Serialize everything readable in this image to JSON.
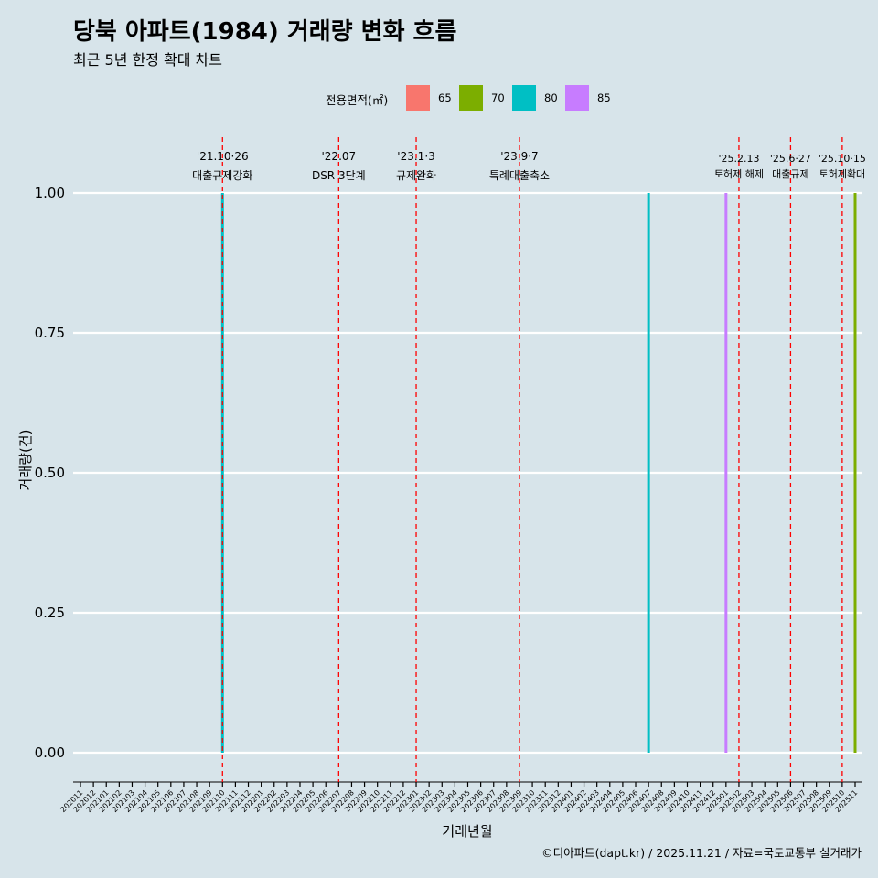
{
  "title": "당북 아파트(1984) 거래량 변화 흐름",
  "subtitle": "최근 5년 한정 확대 차트",
  "caption": "©디아파트(dapt.kr) / 2025.11.21 / 자료=국토교통부 실거래가",
  "legend": {
    "title": "전용면적(㎡)",
    "items": [
      {
        "label": "65",
        "color": "#f8766d"
      },
      {
        "label": "70",
        "color": "#7cae00"
      },
      {
        "label": "80",
        "color": "#00bfc4"
      },
      {
        "label": "85",
        "color": "#c77cff"
      }
    ]
  },
  "chart_data": {
    "type": "bar",
    "title": "당북 아파트(1984) 거래량 변화 흐름",
    "xlabel": "거래년월",
    "ylabel": "거래량(건)",
    "ylim": [
      0,
      1
    ],
    "yticks": [
      "0.00",
      "0.25",
      "0.50",
      "0.75",
      "1.00"
    ],
    "categories": [
      "202011",
      "202012",
      "202101",
      "202102",
      "202103",
      "202104",
      "202105",
      "202106",
      "202107",
      "202108",
      "202109",
      "202110",
      "202111",
      "202112",
      "202201",
      "202202",
      "202203",
      "202204",
      "202205",
      "202206",
      "202207",
      "202208",
      "202209",
      "202210",
      "202211",
      "202212",
      "202301",
      "202302",
      "202303",
      "202304",
      "202305",
      "202306",
      "202307",
      "202308",
      "202309",
      "202310",
      "202311",
      "202312",
      "202401",
      "202402",
      "202403",
      "202404",
      "202405",
      "202406",
      "202407",
      "202408",
      "202409",
      "202410",
      "202411",
      "202412",
      "202501",
      "202502",
      "202503",
      "202504",
      "202505",
      "202506",
      "202507",
      "202508",
      "202509",
      "202510",
      "202511"
    ],
    "series": [
      {
        "name": "80",
        "color": "#00bfc4",
        "points": [
          {
            "x": "202110",
            "y": 1
          },
          {
            "x": "202407",
            "y": 1
          }
        ]
      },
      {
        "name": "85",
        "color": "#c77cff",
        "points": [
          {
            "x": "202501",
            "y": 1
          }
        ]
      },
      {
        "name": "70",
        "color": "#7cae00",
        "points": [
          {
            "x": "202511",
            "y": 1
          }
        ]
      }
    ],
    "events": [
      {
        "x": "202110",
        "label_date": "'21.10·26",
        "label_text": "대출규제강화"
      },
      {
        "x": "202207",
        "label_date": "'22.07",
        "label_text": "DSR 3단계"
      },
      {
        "x": "202301",
        "label_date": "'23.1·3",
        "label_text": "규제완화"
      },
      {
        "x": "202309",
        "label_date": "'23.9·7",
        "label_text": "특례대출축소"
      },
      {
        "x": "202502",
        "label_date": "'25.2.13",
        "label_text": "토허제 해제"
      },
      {
        "x": "202506",
        "label_date": "'25.6·27",
        "label_text": "대출규제"
      },
      {
        "x": "202510",
        "label_date": "'25.10·15",
        "label_text": "토허제확대"
      }
    ]
  }
}
